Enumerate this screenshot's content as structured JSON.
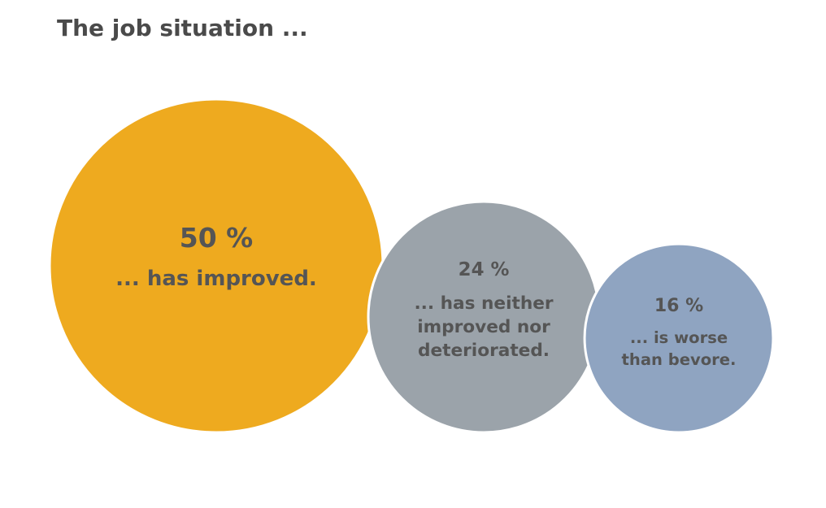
{
  "chart_data": {
    "type": "bubble",
    "title": "The job situation ...",
    "categories": [
      "... has improved.",
      "... has neither improved nor deteriorated.",
      "... is  worse than bevore."
    ],
    "values": [
      50,
      24,
      16
    ],
    "value_labels": [
      "50 %",
      "24 %",
      "16 %"
    ],
    "colors": [
      "#eeaa1f",
      "#9ba3aa",
      "#8fa4c1"
    ]
  }
}
